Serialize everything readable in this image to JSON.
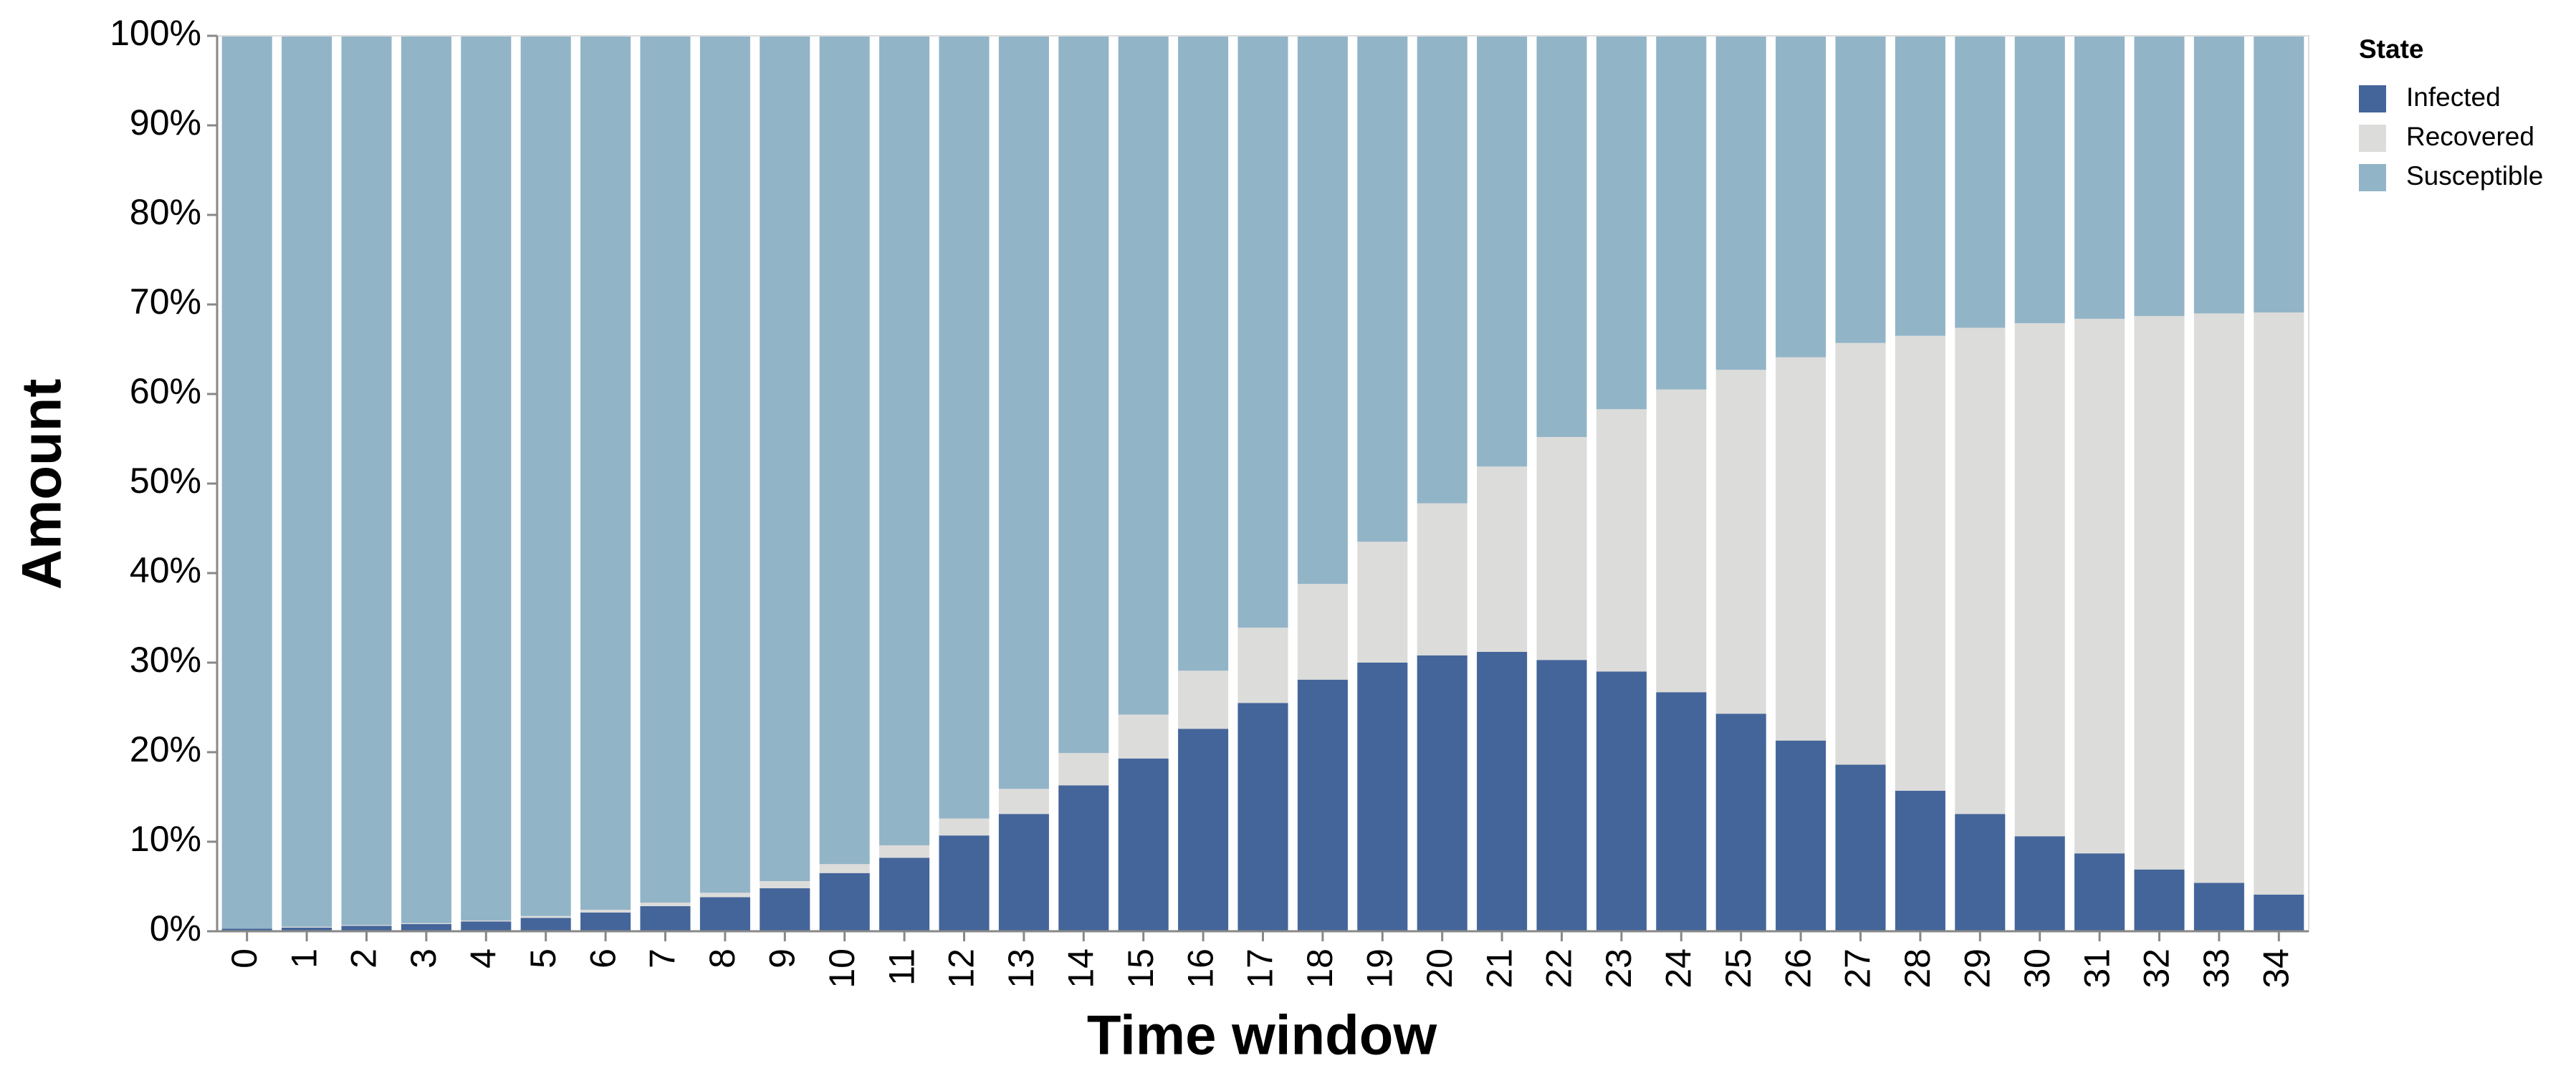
{
  "chart_data": {
    "type": "stacked_bar",
    "x_label": "Time window",
    "y_label": "Amount",
    "legend_title": "State",
    "categories": [
      "0",
      "1",
      "2",
      "3",
      "4",
      "5",
      "6",
      "7",
      "8",
      "9",
      "10",
      "11",
      "12",
      "13",
      "14",
      "15",
      "16",
      "17",
      "18",
      "19",
      "20",
      "21",
      "22",
      "23",
      "24",
      "25",
      "26",
      "27",
      "28",
      "29",
      "30",
      "31",
      "32",
      "33",
      "34"
    ],
    "series": [
      {
        "name": "Infected",
        "color": "#44659a",
        "values": [
          0.3,
          0.4,
          0.6,
          0.8,
          1.1,
          1.5,
          2.1,
          2.8,
          3.8,
          4.8,
          6.5,
          8.2,
          10.7,
          13.1,
          16.3,
          19.3,
          22.6,
          25.5,
          28.1,
          30.0,
          30.8,
          31.2,
          30.3,
          29.0,
          26.7,
          24.3,
          21.3,
          18.6,
          15.7,
          13.1,
          10.6,
          8.7,
          6.9,
          5.4,
          4.1
        ]
      },
      {
        "name": "Recovered",
        "color": "#dcdcda",
        "values": [
          0,
          0.1,
          0.1,
          0.1,
          0.1,
          0.2,
          0.3,
          0.4,
          0.5,
          0.8,
          1.0,
          1.4,
          1.9,
          2.8,
          3.6,
          4.9,
          6.5,
          8.4,
          10.7,
          13.5,
          17.0,
          20.7,
          24.9,
          29.3,
          33.8,
          38.4,
          42.8,
          47.1,
          50.8,
          54.3,
          57.3,
          59.7,
          61.8,
          63.6,
          65.0
        ]
      },
      {
        "name": "Susceptible",
        "color": "#92b4c7",
        "values": [
          99.7,
          99.5,
          99.3,
          99.1,
          98.8,
          98.3,
          97.6,
          96.8,
          95.7,
          94.4,
          92.5,
          90.4,
          87.4,
          84.1,
          80.1,
          75.8,
          70.9,
          66.1,
          61.2,
          56.5,
          52.2,
          48.1,
          44.8,
          41.7,
          39.5,
          37.3,
          35.9,
          34.3,
          33.5,
          32.6,
          32.1,
          31.6,
          31.3,
          31.0,
          30.9
        ]
      }
    ],
    "ylim": [
      0,
      100
    ],
    "yticks": [
      {
        "value": 0,
        "label": "0%"
      },
      {
        "value": 10,
        "label": "10%"
      },
      {
        "value": 20,
        "label": "20%"
      },
      {
        "value": 30,
        "label": "30%"
      },
      {
        "value": 40,
        "label": "40%"
      },
      {
        "value": 50,
        "label": "50%"
      },
      {
        "value": 60,
        "label": "60%"
      },
      {
        "value": 70,
        "label": "70%"
      },
      {
        "value": 80,
        "label": "80%"
      },
      {
        "value": 90,
        "label": "90%"
      },
      {
        "value": 100,
        "label": "100%"
      }
    ],
    "legend_position": "right"
  }
}
